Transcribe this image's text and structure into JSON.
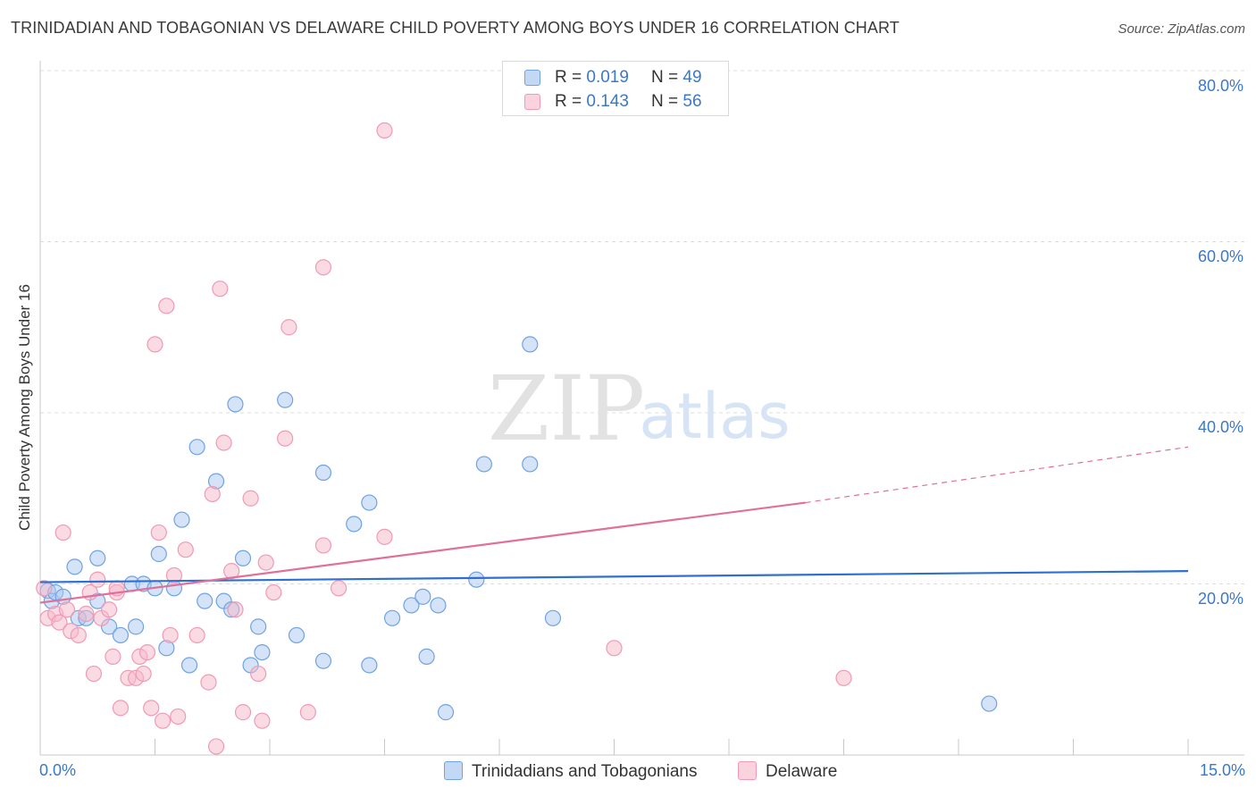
{
  "header": {
    "title": "TRINIDADIAN AND TOBAGONIAN VS DELAWARE CHILD POVERTY AMONG BOYS UNDER 16 CORRELATION CHART",
    "source": "Source: ZipAtlas.com"
  },
  "watermark": {
    "zip": "ZIP",
    "atlas": "atlas"
  },
  "legend_top": [
    {
      "r_label": "R = ",
      "r_value": "0.019",
      "n_label": "N = ",
      "n_value": "49",
      "color": "#a9c8f0"
    },
    {
      "r_label": "R = ",
      "r_value": "0.143",
      "n_label": "N = ",
      "n_value": "56",
      "color": "#f5b8ca"
    }
  ],
  "legend_bottom": [
    {
      "label": "Trinidadians and Tobagonians",
      "color": "#a9c8f0"
    },
    {
      "label": "Delaware",
      "color": "#f5b8ca"
    }
  ],
  "axes": {
    "ylabel": "Child Poverty Among Boys Under 16",
    "x_min_label": "0.0%",
    "x_max_label": "15.0%",
    "y_ticks": [
      "80.0%",
      "60.0%",
      "40.0%",
      "20.0%"
    ]
  },
  "chart_data": {
    "type": "scatter",
    "title": "TRINIDADIAN AND TOBAGONIAN VS DELAWARE CHILD POVERTY AMONG BOYS UNDER 16 CORRELATION CHART",
    "xlabel": "",
    "ylabel": "Child Poverty Among Boys Under 16",
    "xlim": [
      0,
      15
    ],
    "ylim": [
      0,
      80
    ],
    "grid": true,
    "legend": "top-center",
    "series": [
      {
        "name": "Trinidadians and Tobagonians",
        "color": "#6fa3e3",
        "fill": "#a9c8f0",
        "R": 0.019,
        "N": 49,
        "trend": {
          "x": [
            0,
            15
          ],
          "y": [
            20.2,
            21.5
          ],
          "color": "#2f6fcf"
        },
        "points": [
          [
            0.1,
            19.2
          ],
          [
            0.15,
            18.0
          ],
          [
            0.2,
            19.0
          ],
          [
            0.3,
            18.5
          ],
          [
            0.45,
            22.0
          ],
          [
            0.5,
            16.0
          ],
          [
            0.6,
            16.0
          ],
          [
            0.75,
            23.0
          ],
          [
            0.75,
            18.0
          ],
          [
            0.9,
            15.0
          ],
          [
            1.05,
            14.0
          ],
          [
            1.2,
            20.0
          ],
          [
            1.25,
            15.0
          ],
          [
            1.35,
            20.0
          ],
          [
            1.5,
            19.5
          ],
          [
            1.55,
            23.5
          ],
          [
            1.65,
            12.5
          ],
          [
            1.75,
            19.5
          ],
          [
            1.85,
            27.5
          ],
          [
            1.95,
            10.5
          ],
          [
            2.05,
            36.0
          ],
          [
            2.15,
            18.0
          ],
          [
            2.3,
            32.0
          ],
          [
            2.4,
            18.0
          ],
          [
            2.5,
            17.0
          ],
          [
            2.55,
            41.0
          ],
          [
            2.65,
            23.0
          ],
          [
            2.75,
            10.5
          ],
          [
            2.85,
            15.0
          ],
          [
            2.9,
            12.0
          ],
          [
            3.2,
            41.5
          ],
          [
            3.35,
            14.0
          ],
          [
            3.7,
            33.0
          ],
          [
            3.7,
            11.0
          ],
          [
            4.1,
            27.0
          ],
          [
            4.3,
            10.5
          ],
          [
            4.3,
            29.5
          ],
          [
            4.6,
            16.0
          ],
          [
            4.85,
            17.5
          ],
          [
            5.0,
            18.5
          ],
          [
            5.05,
            11.5
          ],
          [
            5.2,
            17.5
          ],
          [
            5.3,
            5.0
          ],
          [
            5.7,
            20.5
          ],
          [
            5.8,
            34.0
          ],
          [
            6.4,
            34.0
          ],
          [
            6.4,
            48.0
          ],
          [
            6.7,
            16.0
          ],
          [
            12.4,
            6.0
          ]
        ]
      },
      {
        "name": "Delaware",
        "color": "#f09ab4",
        "fill": "#f5b8ca",
        "R": 0.143,
        "N": 56,
        "trend": {
          "x": [
            0,
            10
          ],
          "y": [
            17.8,
            29.5
          ],
          "dashed_x": [
            10,
            15
          ],
          "dashed_y": [
            29.5,
            36.0
          ],
          "color": "#e0709a"
        },
        "points": [
          [
            0.05,
            19.5
          ],
          [
            0.1,
            16.0
          ],
          [
            0.2,
            16.5
          ],
          [
            0.25,
            15.5
          ],
          [
            0.3,
            26.0
          ],
          [
            0.35,
            17.0
          ],
          [
            0.4,
            14.5
          ],
          [
            0.5,
            14.0
          ],
          [
            0.6,
            16.5
          ],
          [
            0.65,
            19.0
          ],
          [
            0.7,
            9.5
          ],
          [
            0.75,
            20.5
          ],
          [
            0.8,
            16.0
          ],
          [
            0.9,
            17.0
          ],
          [
            0.95,
            11.5
          ],
          [
            1.0,
            19.0
          ],
          [
            1.0,
            19.5
          ],
          [
            1.05,
            5.5
          ],
          [
            1.15,
            9.0
          ],
          [
            1.25,
            9.0
          ],
          [
            1.3,
            11.5
          ],
          [
            1.35,
            9.5
          ],
          [
            1.4,
            12.0
          ],
          [
            1.45,
            5.5
          ],
          [
            1.5,
            48.0
          ],
          [
            1.55,
            26.0
          ],
          [
            1.6,
            4.0
          ],
          [
            1.65,
            52.5
          ],
          [
            1.7,
            14.0
          ],
          [
            1.75,
            21.0
          ],
          [
            1.8,
            4.5
          ],
          [
            1.9,
            24.0
          ],
          [
            2.05,
            14.0
          ],
          [
            2.2,
            8.5
          ],
          [
            2.25,
            30.5
          ],
          [
            2.3,
            1.0
          ],
          [
            2.35,
            54.5
          ],
          [
            2.4,
            36.5
          ],
          [
            2.5,
            21.5
          ],
          [
            2.55,
            17.0
          ],
          [
            2.65,
            5.0
          ],
          [
            2.75,
            30.0
          ],
          [
            2.85,
            9.5
          ],
          [
            2.9,
            4.0
          ],
          [
            2.95,
            22.5
          ],
          [
            3.05,
            19.0
          ],
          [
            3.2,
            37.0
          ],
          [
            3.25,
            50.0
          ],
          [
            3.5,
            5.0
          ],
          [
            3.7,
            57.0
          ],
          [
            3.7,
            24.5
          ],
          [
            3.9,
            19.5
          ],
          [
            4.5,
            25.5
          ],
          [
            4.5,
            73.0
          ],
          [
            7.5,
            12.5
          ],
          [
            10.5,
            9.0
          ]
        ]
      }
    ]
  }
}
